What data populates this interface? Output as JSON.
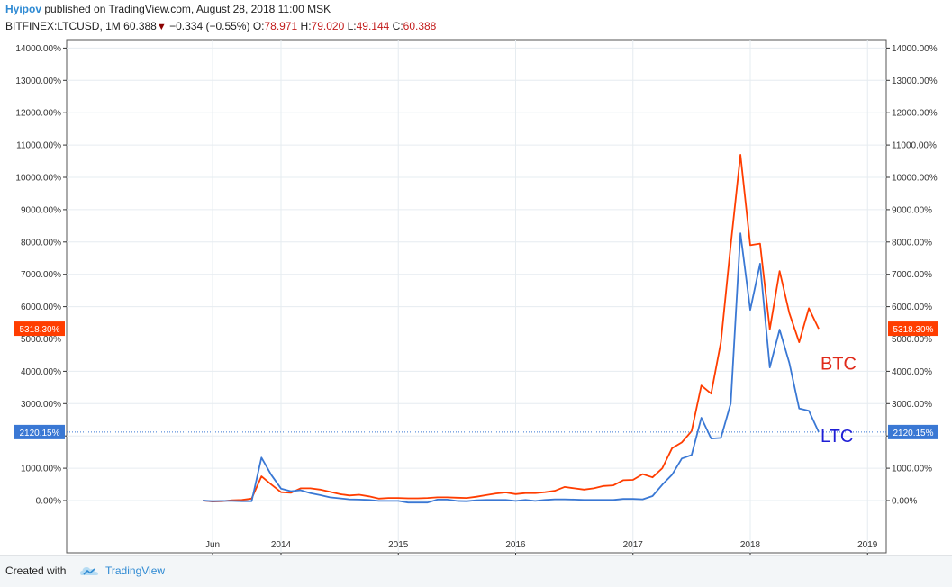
{
  "header": {
    "author": "Hyipov",
    "published_text": " published on TradingView.com, August 28, 2018 11:00 MSK",
    "symbol": "BITFINEX:LTCUSD, 1M",
    "last": "60.388",
    "down_arrow": "▼",
    "change": "−0.334 (−0.55%)",
    "o_label": "O:",
    "o_value": "78.971",
    "h_label": "H:",
    "h_value": "79.020",
    "l_label": "L:",
    "l_value": "49.144",
    "c_label": "C:",
    "c_value": "60.388"
  },
  "footer": {
    "created_with": "Created with",
    "brand": "TradingView"
  },
  "colors": {
    "btc": "#ff3d00",
    "ltc": "#3a78d4",
    "btc_label": "#e02a1a",
    "ltc_label": "#1f1fd6",
    "grid": "#e6ecf0",
    "axis": "#333333"
  },
  "chart_data": {
    "type": "line",
    "y_unit": "%",
    "ylim": [
      -1000,
      14300
    ],
    "y_ticks": [
      "14000.00%",
      "13000.00%",
      "12000.00%",
      "11000.00%",
      "10000.00%",
      "9000.00%",
      "8000.00%",
      "7000.00%",
      "6000.00%",
      "5000.00%",
      "4000.00%",
      "3000.00%",
      "2000.00%",
      "1000.00%",
      "0.00%"
    ],
    "y_tick_values": [
      14000,
      13000,
      12000,
      11000,
      10000,
      9000,
      8000,
      7000,
      6000,
      5000,
      4000,
      3000,
      2000,
      1000,
      0
    ],
    "x_ticks": [
      {
        "label": "Jun",
        "date": "2013-06"
      },
      {
        "label": "2014",
        "date": "2014-01"
      },
      {
        "label": "2015",
        "date": "2015-01"
      },
      {
        "label": "2016",
        "date": "2016-01"
      },
      {
        "label": "2017",
        "date": "2017-01"
      },
      {
        "label": "2018",
        "date": "2018-01"
      },
      {
        "label": "2019",
        "date": "2019-01"
      }
    ],
    "grid": true,
    "series": [
      {
        "name": "BTC",
        "last_label": "5318.30%",
        "points": [
          [
            "2013-05",
            0
          ],
          [
            "2013-06",
            -30
          ],
          [
            "2013-07",
            -20
          ],
          [
            "2013-08",
            10
          ],
          [
            "2013-09",
            20
          ],
          [
            "2013-10",
            60
          ],
          [
            "2013-11",
            750
          ],
          [
            "2013-12",
            500
          ],
          [
            "2014-01",
            260
          ],
          [
            "2014-02",
            240
          ],
          [
            "2014-03",
            380
          ],
          [
            "2014-04",
            380
          ],
          [
            "2014-05",
            340
          ],
          [
            "2014-06",
            270
          ],
          [
            "2014-07",
            200
          ],
          [
            "2014-08",
            160
          ],
          [
            "2014-09",
            180
          ],
          [
            "2014-10",
            130
          ],
          [
            "2014-11",
            60
          ],
          [
            "2014-12",
            80
          ],
          [
            "2015-01",
            80
          ],
          [
            "2015-02",
            70
          ],
          [
            "2015-03",
            70
          ],
          [
            "2015-04",
            80
          ],
          [
            "2015-05",
            100
          ],
          [
            "2015-06",
            100
          ],
          [
            "2015-07",
            90
          ],
          [
            "2015-08",
            80
          ],
          [
            "2015-09",
            120
          ],
          [
            "2015-10",
            170
          ],
          [
            "2015-11",
            220
          ],
          [
            "2015-12",
            250
          ],
          [
            "2016-01",
            200
          ],
          [
            "2016-02",
            230
          ],
          [
            "2016-03",
            230
          ],
          [
            "2016-04",
            260
          ],
          [
            "2016-05",
            300
          ],
          [
            "2016-06",
            420
          ],
          [
            "2016-07",
            380
          ],
          [
            "2016-08",
            340
          ],
          [
            "2016-09",
            380
          ],
          [
            "2016-10",
            450
          ],
          [
            "2016-11",
            470
          ],
          [
            "2016-12",
            630
          ],
          [
            "2017-01",
            640
          ],
          [
            "2017-02",
            820
          ],
          [
            "2017-03",
            720
          ],
          [
            "2017-04",
            1000
          ],
          [
            "2017-05",
            1620
          ],
          [
            "2017-06",
            1800
          ],
          [
            "2017-07",
            2150
          ],
          [
            "2017-08",
            3560
          ],
          [
            "2017-09",
            3310
          ],
          [
            "2017-10",
            4900
          ],
          [
            "2017-11",
            7900
          ],
          [
            "2017-12",
            10700
          ],
          [
            "2018-01",
            7900
          ],
          [
            "2018-02",
            7950
          ],
          [
            "2018-03",
            5300
          ],
          [
            "2018-04",
            7100
          ],
          [
            "2018-05",
            5800
          ],
          [
            "2018-06",
            4900
          ],
          [
            "2018-07",
            5950
          ],
          [
            "2018-08",
            5318.3
          ]
        ]
      },
      {
        "name": "LTC",
        "last_label": "2120.15%",
        "points": [
          [
            "2013-05",
            0
          ],
          [
            "2013-06",
            -20
          ],
          [
            "2013-07",
            -10
          ],
          [
            "2013-08",
            -10
          ],
          [
            "2013-09",
            -20
          ],
          [
            "2013-10",
            -20
          ],
          [
            "2013-11",
            1330
          ],
          [
            "2013-12",
            800
          ],
          [
            "2014-01",
            370
          ],
          [
            "2014-02",
            290
          ],
          [
            "2014-03",
            320
          ],
          [
            "2014-04",
            230
          ],
          [
            "2014-05",
            170
          ],
          [
            "2014-06",
            100
          ],
          [
            "2014-07",
            70
          ],
          [
            "2014-08",
            40
          ],
          [
            "2014-09",
            30
          ],
          [
            "2014-10",
            20
          ],
          [
            "2014-11",
            -10
          ],
          [
            "2014-12",
            -10
          ],
          [
            "2015-01",
            -10
          ],
          [
            "2015-02",
            -60
          ],
          [
            "2015-03",
            -60
          ],
          [
            "2015-04",
            -60
          ],
          [
            "2015-05",
            30
          ],
          [
            "2015-06",
            30
          ],
          [
            "2015-07",
            -10
          ],
          [
            "2015-08",
            -20
          ],
          [
            "2015-09",
            10
          ],
          [
            "2015-10",
            20
          ],
          [
            "2015-11",
            20
          ],
          [
            "2015-12",
            20
          ],
          [
            "2016-01",
            -10
          ],
          [
            "2016-02",
            20
          ],
          [
            "2016-03",
            -10
          ],
          [
            "2016-04",
            20
          ],
          [
            "2016-05",
            40
          ],
          [
            "2016-06",
            40
          ],
          [
            "2016-07",
            30
          ],
          [
            "2016-08",
            20
          ],
          [
            "2016-09",
            20
          ],
          [
            "2016-10",
            20
          ],
          [
            "2016-11",
            20
          ],
          [
            "2016-12",
            50
          ],
          [
            "2017-01",
            50
          ],
          [
            "2017-02",
            40
          ],
          [
            "2017-03",
            140
          ],
          [
            "2017-04",
            490
          ],
          [
            "2017-05",
            800
          ],
          [
            "2017-06",
            1300
          ],
          [
            "2017-07",
            1410
          ],
          [
            "2017-08",
            2560
          ],
          [
            "2017-09",
            1920
          ],
          [
            "2017-10",
            1940
          ],
          [
            "2017-11",
            3000
          ],
          [
            "2017-12",
            8270
          ],
          [
            "2018-01",
            5900
          ],
          [
            "2018-02",
            7330
          ],
          [
            "2018-03",
            4120
          ],
          [
            "2018-04",
            5290
          ],
          [
            "2018-05",
            4260
          ],
          [
            "2018-06",
            2850
          ],
          [
            "2018-07",
            2780
          ],
          [
            "2018-08",
            2120.15
          ]
        ]
      }
    ]
  }
}
